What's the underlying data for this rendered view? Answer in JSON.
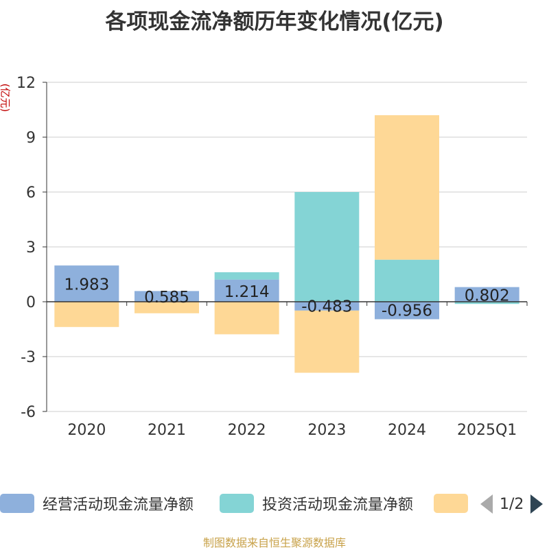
{
  "title": "各项现金流净额历年变化情况(亿元)",
  "ylabel": "(亿元)",
  "source": "制图数据来自恒生聚源数据库",
  "legend": {
    "items": [
      {
        "label": "经营活动现金流量净额",
        "color": "#8eb0dc"
      },
      {
        "label": "投资活动现金流量净额",
        "color": "#84d4d5"
      },
      {
        "label": "",
        "color": "#fed896"
      }
    ],
    "pager": "1/2"
  },
  "chart_data": {
    "type": "bar",
    "stacked": true,
    "categories": [
      "2020",
      "2021",
      "2022",
      "2023",
      "2024",
      "2025Q1"
    ],
    "ylim": [
      -6,
      12
    ],
    "yticks": [
      -6,
      -3,
      0,
      3,
      6,
      9,
      12
    ],
    "grid": true,
    "series": [
      {
        "name": "经营活动现金流量净额",
        "color": "#8eb0dc",
        "values": [
          1.983,
          0.585,
          1.214,
          -0.483,
          -0.956,
          0.802
        ],
        "labels": [
          "1.983",
          "0.585",
          "1.214",
          "-0.483",
          "-0.956",
          "0.802"
        ]
      },
      {
        "name": "投资活动现金流量净额",
        "color": "#84d4d5",
        "values": [
          0.0,
          0.0,
          0.4,
          6.0,
          2.3,
          -0.12
        ]
      },
      {
        "color": "#fed896",
        "values": [
          -1.38,
          -0.63,
          -1.78,
          -3.4,
          7.9,
          0.0
        ]
      }
    ]
  }
}
